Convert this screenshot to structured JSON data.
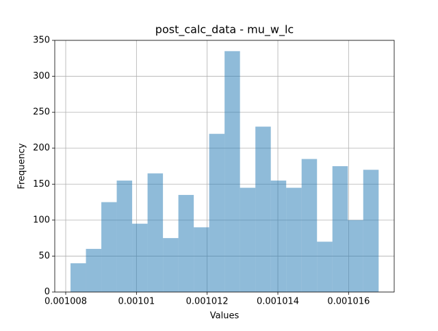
{
  "chart_data": {
    "type": "histogram",
    "title": "post_calc_data - mu_w_lc",
    "x_label": "Values",
    "y_label": "Frequency",
    "bins": [
      0.001008136,
      0.0010085717,
      0.0010090074,
      0.0010094431,
      0.0010098788,
      0.0010103145,
      0.0010107502,
      0.0010111859,
      0.0010116216,
      0.0010120573,
      0.001012493,
      0.0010129287,
      0.0010133644,
      0.0010138001,
      0.0010142358,
      0.0010146715,
      0.0010151072,
      0.0010155429,
      0.0010159786,
      0.0010164143,
      0.00101685
    ],
    "values": [
      40,
      60,
      125,
      155,
      95,
      165,
      75,
      135,
      90,
      220,
      335,
      145,
      230,
      155,
      145,
      185,
      70,
      175,
      100,
      170
    ],
    "color": "#1f77b4",
    "opacity": 0.5,
    "xlim": [
      0.00100769,
      0.00101729
    ],
    "xticks": [
      0.001008,
      0.00101,
      0.001012,
      0.001014,
      0.001016
    ],
    "ylim": [
      0,
      350
    ],
    "yticks": [
      0,
      50,
      100,
      150,
      200,
      250,
      300,
      350
    ],
    "grid": true
  }
}
